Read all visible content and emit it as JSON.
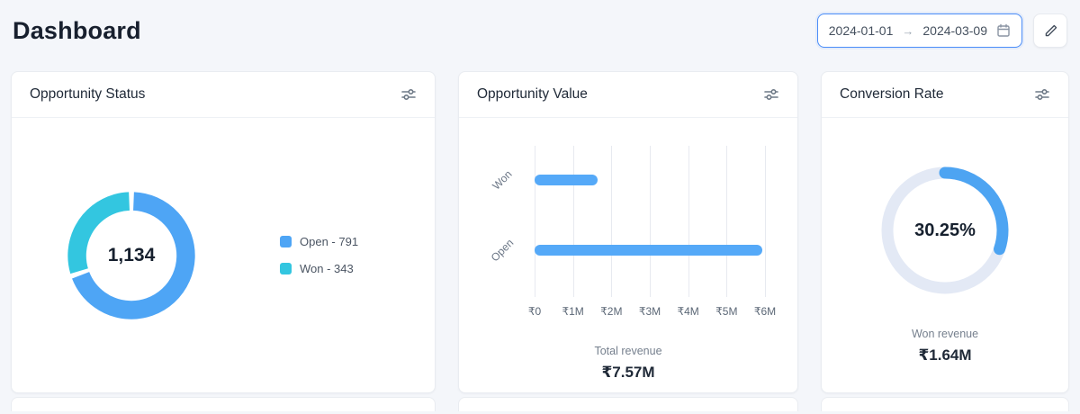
{
  "page": {
    "title": "Dashboard"
  },
  "header": {
    "date_range": {
      "start": "2024-01-01",
      "end": "2024-03-09",
      "separator": "→"
    },
    "icons": {
      "calendar": "calendar-icon",
      "edit": "pencil-icon",
      "card_options": "sliders-icon"
    }
  },
  "cards": {
    "opportunity_status": {
      "title": "Opportunity Status",
      "total": "1,134",
      "legend": [
        {
          "label": "Open - 791",
          "color": "#4ea5f5"
        },
        {
          "label": "Won - 343",
          "color": "#33c6e0"
        }
      ]
    },
    "opportunity_value": {
      "title": "Opportunity Value",
      "footer_label": "Total revenue",
      "footer_value": "₹7.57M"
    },
    "conversion_rate": {
      "title": "Conversion Rate",
      "value": "30.25%",
      "footer_label": "Won revenue",
      "footer_value": "₹1.64M"
    }
  },
  "chart_data": [
    {
      "type": "pie",
      "subtype": "donut",
      "title": "Opportunity Status",
      "categories": [
        "Open",
        "Won"
      ],
      "values": [
        791,
        343
      ],
      "colors": [
        "#4ea5f5",
        "#33c6e0"
      ],
      "center_label": "1,134",
      "legend_position": "right"
    },
    {
      "type": "bar",
      "orientation": "horizontal",
      "title": "Opportunity Value",
      "categories": [
        "Won",
        "Open"
      ],
      "values": [
        1640000,
        5930000
      ],
      "x_ticks": [
        "₹0",
        "₹1M",
        "₹2M",
        "₹3M",
        "₹4M",
        "₹5M",
        "₹6M"
      ],
      "xlim": [
        0,
        6000000
      ],
      "bar_color": "#55a9f8",
      "grid": true,
      "annotations": {
        "total_revenue": "₹7.57M"
      }
    },
    {
      "type": "pie",
      "subtype": "progress-ring",
      "title": "Conversion Rate",
      "percent": 30.25,
      "center_label": "30.25%",
      "arc_color": "#4da4f2",
      "track_color": "#e3e9f5",
      "annotations": {
        "won_revenue": "₹1.64M"
      }
    }
  ]
}
